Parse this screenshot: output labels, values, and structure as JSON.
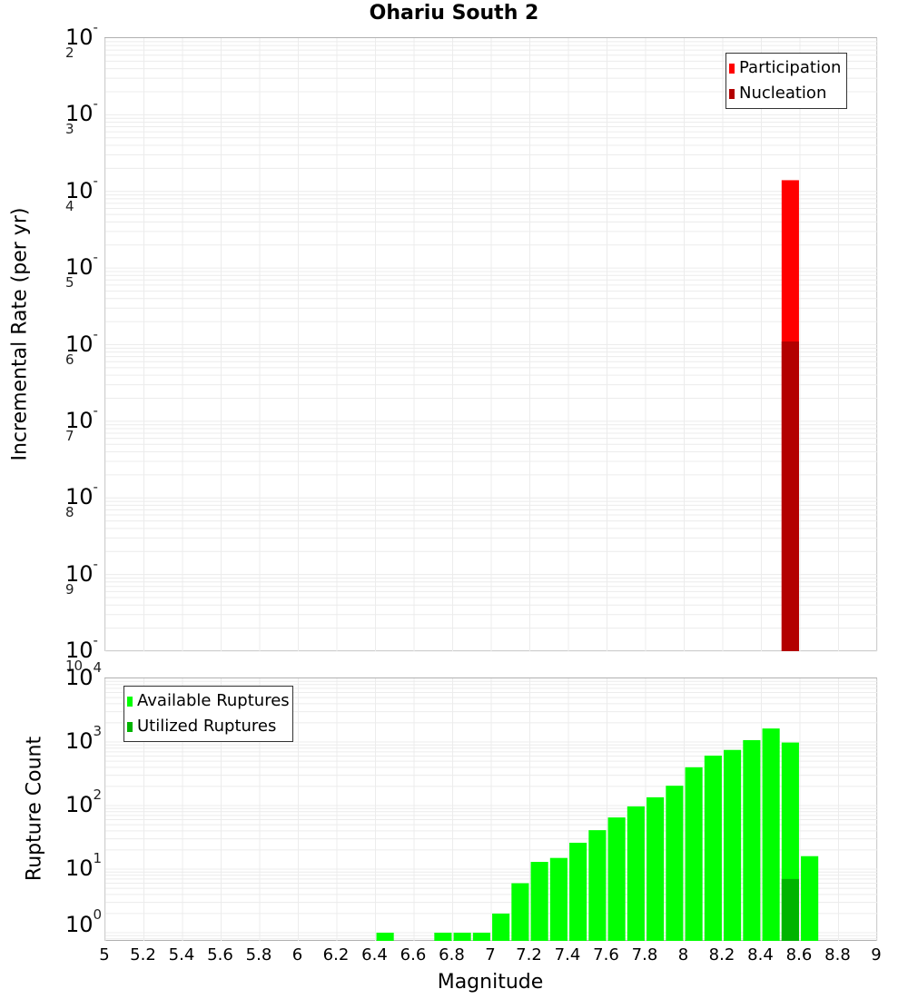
{
  "title": "Ohariu South 2",
  "chart_data": [
    {
      "type": "bar",
      "title": "Ohariu South 2",
      "xlabel": "Magnitude",
      "ylabel": "Incremental Rate (per yr)",
      "yscale": "log",
      "ylim": [
        1e-10,
        0.01
      ],
      "xlim": [
        5,
        9
      ],
      "grid": true,
      "legend_position": "top-right",
      "y_ticks": [
        "10^-2",
        "10^-3",
        "10^-4",
        "10^-5",
        "10^-6",
        "10^-7",
        "10^-8",
        "10^-9",
        "10^-10"
      ],
      "series": [
        {
          "name": "Participation",
          "color": "#ff0000",
          "x": [
            8.55
          ],
          "values": [
            0.00014
          ]
        },
        {
          "name": "Nucleation",
          "color": "#b30000",
          "x": [
            8.55
          ],
          "values": [
            1.1e-06
          ]
        }
      ]
    },
    {
      "type": "bar",
      "title": "",
      "xlabel": "Magnitude",
      "ylabel": "Rupture Count",
      "yscale": "log",
      "ylim": [
        0.7,
        10000
      ],
      "xlim": [
        5,
        9
      ],
      "grid": true,
      "legend_position": "top-left",
      "x_ticks": [
        "5",
        "5.2",
        "5.4",
        "5.6",
        "5.8",
        "6",
        "6.2",
        "6.4",
        "6.6",
        "6.8",
        "7",
        "7.2",
        "7.4",
        "7.6",
        "7.8",
        "8",
        "8.2",
        "8.4",
        "8.6",
        "8.8",
        "9"
      ],
      "y_ticks": [
        "10^4",
        "10^3",
        "10^2",
        "10^1",
        "10^0"
      ],
      "series": [
        {
          "name": "Available Ruptures",
          "color": "#00ff00",
          "x": [
            6.45,
            6.75,
            6.85,
            6.95,
            7.05,
            7.15,
            7.25,
            7.35,
            7.45,
            7.55,
            7.65,
            7.75,
            7.85,
            7.95,
            8.05,
            8.15,
            8.25,
            8.35,
            8.45,
            8.55,
            8.65
          ],
          "values": [
            1,
            1,
            1,
            1,
            2,
            6,
            13,
            15,
            26,
            41,
            65,
            97,
            135,
            205,
            400,
            610,
            750,
            1070,
            1630,
            980,
            16
          ]
        },
        {
          "name": "Utilized Ruptures",
          "color": "#00b400",
          "x": [
            8.55
          ],
          "values": [
            7
          ]
        }
      ]
    }
  ],
  "top_plot": {
    "ylabel": "Incremental Rate (per yr)",
    "y_ticks": [
      {
        "base": "10",
        "exp": "-2"
      },
      {
        "base": "10",
        "exp": "-3"
      },
      {
        "base": "10",
        "exp": "-4"
      },
      {
        "base": "10",
        "exp": "-5"
      },
      {
        "base": "10",
        "exp": "-6"
      },
      {
        "base": "10",
        "exp": "-7"
      },
      {
        "base": "10",
        "exp": "-8"
      },
      {
        "base": "10",
        "exp": "-9"
      },
      {
        "base": "10",
        "exp": "-10"
      }
    ],
    "legend": [
      {
        "label": "Participation",
        "color": "#ff0000"
      },
      {
        "label": "Nucleation",
        "color": "#b30000"
      }
    ]
  },
  "bottom_plot": {
    "ylabel": "Rupture Count",
    "xlabel": "Magnitude",
    "y_ticks": [
      {
        "base": "10",
        "exp": "4"
      },
      {
        "base": "10",
        "exp": "3"
      },
      {
        "base": "10",
        "exp": "2"
      },
      {
        "base": "10",
        "exp": "1"
      },
      {
        "base": "10",
        "exp": "0"
      }
    ],
    "x_ticks": [
      "5",
      "5.2",
      "5.4",
      "5.6",
      "5.8",
      "6",
      "6.2",
      "6.4",
      "6.6",
      "6.8",
      "7",
      "7.2",
      "7.4",
      "7.6",
      "7.8",
      "8",
      "8.2",
      "8.4",
      "8.6",
      "8.8",
      "9"
    ],
    "legend": [
      {
        "label": "Available Ruptures",
        "color": "#00ff00"
      },
      {
        "label": "Utilized Ruptures",
        "color": "#00b400"
      }
    ]
  }
}
